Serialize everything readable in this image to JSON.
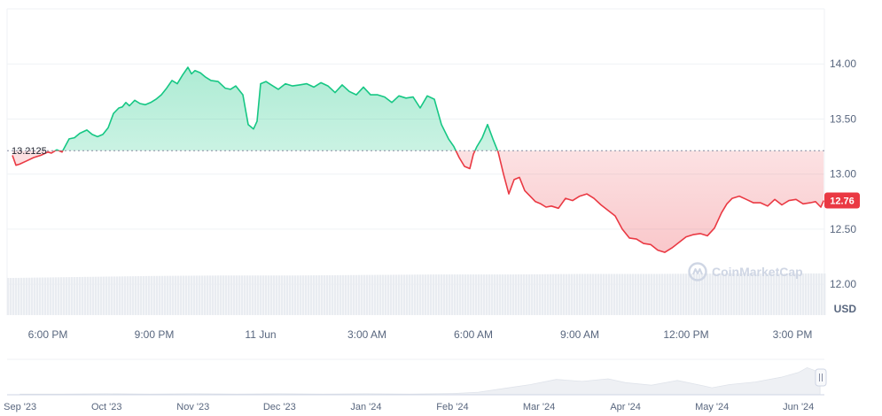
{
  "chart_data": {
    "type": "line",
    "unit": "USD",
    "reference_value": 13.2125,
    "reference_label": "13.2125",
    "current_value_label": "12.76",
    "y_ticks": [
      "14.00",
      "13.50",
      "13.00",
      "12.50",
      "12.00"
    ],
    "y_tick_values": [
      14.0,
      13.5,
      13.0,
      12.5,
      12.0
    ],
    "ylim": [
      11.72,
      14.5
    ],
    "x_ticks": [
      "6:00 PM",
      "9:00 PM",
      "11 Jun",
      "3:00 AM",
      "6:00 AM",
      "9:00 AM",
      "12:00 PM",
      "3:00 PM"
    ],
    "x_tick_hours": [
      1,
      4,
      7,
      10,
      13,
      16,
      19,
      22
    ],
    "xlim_hours": [
      -0.15,
      22.9
    ],
    "grid": true,
    "watermark": "CoinMarketCap",
    "colors": {
      "up": "#16c784",
      "down": "#ea3943",
      "grid": "#eff2f5",
      "reference": "#858ca2"
    },
    "series": [
      {
        "x_hours": [
          0,
          0.1,
          0.2,
          0.4,
          0.6,
          0.8,
          1.0,
          1.1,
          1.25,
          1.4,
          1.6,
          1.75,
          1.9,
          2.1,
          2.25,
          2.4,
          2.55,
          2.7,
          2.85,
          3.0,
          3.1,
          3.2,
          3.3,
          3.45,
          3.6,
          3.75,
          3.9,
          4.05,
          4.2,
          4.35,
          4.5,
          4.65,
          4.8,
          4.95,
          5.05,
          5.15,
          5.3,
          5.45,
          5.6,
          5.8,
          6.0,
          6.15,
          6.3,
          6.5,
          6.65,
          6.8,
          6.9,
          7.0,
          7.15,
          7.3,
          7.5,
          7.7,
          7.9,
          8.1,
          8.3,
          8.5,
          8.7,
          8.9,
          9.1,
          9.3,
          9.5,
          9.7,
          9.9,
          10.1,
          10.3,
          10.5,
          10.7,
          10.9,
          11.1,
          11.3,
          11.5,
          11.7,
          11.9,
          12.1,
          12.3,
          12.45,
          12.6,
          12.75,
          12.9,
          13.0,
          13.1,
          13.25,
          13.4,
          13.55,
          13.7,
          13.85,
          14.0,
          14.15,
          14.3,
          14.45,
          14.6,
          14.75,
          14.9,
          15.05,
          15.2,
          15.4,
          15.6,
          15.8,
          16.0,
          16.2,
          16.4,
          16.6,
          16.8,
          17.0,
          17.2,
          17.4,
          17.6,
          17.8,
          18.0,
          18.2,
          18.4,
          18.6,
          18.8,
          19.0,
          19.2,
          19.4,
          19.6,
          19.8,
          20.0,
          20.15,
          20.3,
          20.5,
          20.7,
          20.9,
          21.1,
          21.3,
          21.5,
          21.7,
          21.9,
          22.1,
          22.3,
          22.5,
          22.65,
          22.8,
          22.88
        ],
        "values": [
          13.17,
          13.08,
          13.09,
          13.12,
          13.15,
          13.17,
          13.2,
          13.19,
          13.22,
          13.2,
          13.32,
          13.33,
          13.37,
          13.4,
          13.36,
          13.34,
          13.36,
          13.42,
          13.55,
          13.6,
          13.61,
          13.65,
          13.62,
          13.67,
          13.64,
          13.63,
          13.65,
          13.68,
          13.72,
          13.78,
          13.85,
          13.82,
          13.9,
          13.97,
          13.91,
          13.94,
          13.92,
          13.88,
          13.85,
          13.84,
          13.78,
          13.77,
          13.8,
          13.72,
          13.45,
          13.41,
          13.48,
          13.82,
          13.84,
          13.81,
          13.77,
          13.82,
          13.8,
          13.81,
          13.82,
          13.79,
          13.83,
          13.8,
          13.74,
          13.81,
          13.75,
          13.72,
          13.79,
          13.72,
          13.72,
          13.7,
          13.65,
          13.71,
          13.69,
          13.7,
          13.6,
          13.71,
          13.68,
          13.45,
          13.32,
          13.25,
          13.15,
          13.07,
          13.05,
          13.18,
          13.25,
          13.33,
          13.45,
          13.32,
          13.2,
          13.0,
          12.82,
          12.95,
          12.97,
          12.85,
          12.8,
          12.75,
          12.73,
          12.7,
          12.71,
          12.69,
          12.78,
          12.76,
          12.8,
          12.82,
          12.78,
          12.72,
          12.67,
          12.62,
          12.5,
          12.42,
          12.41,
          12.37,
          12.36,
          12.31,
          12.29,
          12.33,
          12.38,
          12.43,
          12.45,
          12.46,
          12.44,
          12.51,
          12.65,
          12.73,
          12.78,
          12.8,
          12.77,
          12.74,
          12.74,
          12.71,
          12.77,
          12.72,
          12.76,
          12.77,
          12.73,
          12.74,
          12.75,
          12.7,
          12.76
        ]
      }
    ],
    "volume": {
      "x_hours": [
        0,
        2,
        4,
        6,
        8,
        10,
        12,
        14,
        16,
        18,
        20,
        22,
        22.9
      ],
      "values": [
        0.75,
        0.77,
        0.79,
        0.8,
        0.8,
        0.81,
        0.82,
        0.82,
        0.83,
        0.83,
        0.84,
        0.84,
        0.84
      ]
    },
    "navigator": {
      "x_labels": [
        "Sep '23",
        "Oct '23",
        "Nov '23",
        "Dec '23",
        "Jan '24",
        "Feb '24",
        "Mar '24",
        "Apr '24",
        "May '24",
        "Jun '24"
      ],
      "x_label_months": [
        0,
        1,
        2,
        3,
        4,
        5,
        6,
        7,
        8,
        9
      ],
      "xlim_months": [
        -0.15,
        9.3
      ],
      "x_months": [
        0,
        0.5,
        1,
        1.5,
        2,
        2.5,
        3,
        3.5,
        4,
        4.5,
        5,
        5.3,
        5.6,
        5.9,
        6.2,
        6.5,
        6.8,
        7.0,
        7.3,
        7.6,
        7.9,
        8.0,
        8.2,
        8.5,
        8.8,
        9.0,
        9.1,
        9.2,
        9.25
      ],
      "values": [
        0.02,
        0.02,
        0.03,
        0.02,
        0.03,
        0.02,
        0.03,
        0.02,
        0.03,
        0.02,
        0.04,
        0.08,
        0.2,
        0.32,
        0.48,
        0.42,
        0.5,
        0.38,
        0.3,
        0.45,
        0.28,
        0.22,
        0.32,
        0.4,
        0.55,
        0.7,
        0.85,
        0.75,
        0.72
      ]
    }
  }
}
